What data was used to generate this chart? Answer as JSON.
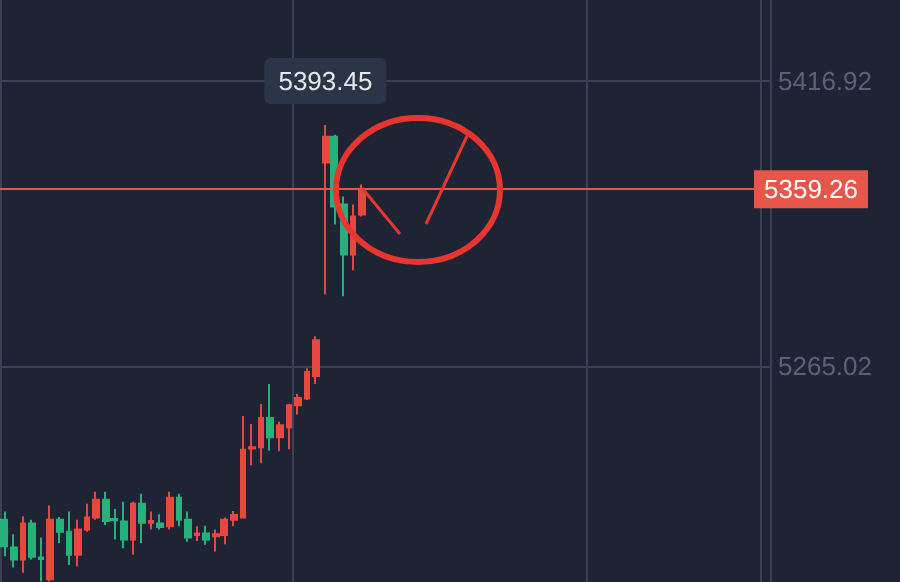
{
  "chart_data": {
    "type": "candlestick",
    "categories": [
      null,
      null,
      null,
      null,
      null,
      null,
      null,
      null,
      null,
      null,
      null,
      null,
      null,
      null,
      null,
      null,
      null,
      null,
      null,
      null,
      null,
      null,
      null,
      null,
      null,
      null,
      null,
      null,
      null,
      null,
      null,
      null,
      null,
      null,
      null,
      null,
      null,
      null,
      null,
      null,
      null,
      null,
      null,
      null,
      null,
      null,
      null,
      null,
      null,
      null,
      null,
      null,
      null,
      null,
      null,
      null,
      null,
      null,
      null,
      null,
      null,
      null,
      null,
      null,
      null,
      null,
      null,
      null,
      null,
      null,
      null,
      null,
      null,
      null,
      null,
      null,
      null,
      null,
      null,
      null,
      null,
      null,
      null,
      null
    ],
    "ohlc": [
      [
        5183.2,
        5187.5,
        5163.7,
        5169.0
      ],
      [
        5168.4,
        5175.4,
        5157.7,
        5162.0
      ],
      [
        5162.0,
        5185.0,
        5154.9,
        5181.1
      ],
      [
        5181.1,
        5183.2,
        5162.0,
        5163.4
      ],
      [
        5163.0,
        5173.7,
        5150.3,
        5162.3
      ],
      [
        5151.4,
        5190.7,
        5150.3,
        5183.2
      ],
      [
        5183.2,
        5184.6,
        5170.8,
        5176.8
      ],
      [
        5176.8,
        5187.5,
        5159.1,
        5164.5
      ],
      [
        5164.5,
        5183.2,
        5158.4,
        5177.9
      ],
      [
        5177.9,
        5191.7,
        5176.8,
        5184.3
      ],
      [
        5184.3,
        5198.1,
        5183.2,
        5193.8
      ],
      [
        5193.8,
        5198.1,
        5180.4,
        5182.5
      ],
      [
        5183.6,
        5188.9,
        5172.6,
        5182.9
      ],
      [
        5182.2,
        5192.8,
        5168.0,
        5172.6
      ],
      [
        5172.6,
        5192.8,
        5164.5,
        5191.7
      ],
      [
        5191.7,
        5197.0,
        5170.8,
        5181.5
      ],
      [
        5181.5,
        5187.5,
        5177.9,
        5182.5
      ],
      [
        5181.1,
        5186.1,
        5177.9,
        5179.3
      ],
      [
        5179.7,
        5198.1,
        5177.9,
        5194.9
      ],
      [
        5194.9,
        5197.0,
        5179.7,
        5183.2
      ],
      [
        5183.2,
        5187.5,
        5171.5,
        5173.7
      ],
      [
        5175.1,
        5179.7,
        5171.9,
        5175.8
      ],
      [
        5175.8,
        5180.0,
        5169.8,
        5172.6
      ],
      [
        5174.4,
        5177.9,
        5166.2,
        5175.4
      ],
      [
        5175.1,
        5184.3,
        5170.1,
        5183.2
      ],
      [
        5183.2,
        5187.8,
        5179.7,
        5185.7
      ],
      [
        5184.3,
        5238.4,
        5184.3,
        5220.4
      ],
      [
        5221.1,
        5234.2,
        5212.2,
        5221.8
      ],
      [
        5221.8,
        5244.8,
        5213.3,
        5237.4
      ],
      [
        5237.4,
        5255.4,
        5220.0,
        5227.1
      ],
      [
        5227.1,
        5235.3,
        5219.7,
        5233.5
      ],
      [
        5232.4,
        5244.8,
        5220.7,
        5244.1
      ],
      [
        5244.1,
        5250.1,
        5239.2,
        5248.0
      ],
      [
        5247.7,
        5263.9,
        5246.9,
        5261.8
      ],
      [
        5259.7,
        5280.9,
        5255.5,
        5278.8
      ],
      [
        5373.4,
        5393.45,
        5303.3,
        5387.2
      ],
      [
        5387.2,
        5388.2,
        5340.4,
        5350.0
      ],
      [
        5351.1,
        5355.3,
        5302.2,
        5324.5
      ],
      [
        5324.5,
        5351.1,
        5316.0,
        5344.7
      ],
      [
        5345.7,
        5361.7,
        5344.7,
        5359.26
      ],
      null,
      null,
      null,
      null,
      null,
      null,
      null,
      null,
      null,
      null,
      null,
      null,
      null,
      null,
      null,
      null,
      null,
      null,
      null,
      null,
      null,
      null,
      null,
      null,
      null,
      null,
      null,
      null,
      null,
      null,
      null,
      null,
      null,
      null,
      null,
      null,
      null,
      null,
      null,
      null,
      null,
      null,
      null,
      null
    ],
    "colors": [
      "#26b07a",
      "#26b07a",
      "#e8473f",
      "#26b07a",
      "#26b07a",
      "#e8473f",
      "#26b07a",
      "#26b07a",
      "#e8473f",
      "#e8473f",
      "#e8473f",
      "#26b07a",
      "#26b07a",
      "#26b07a",
      "#e8473f",
      "#26b07a",
      "#e8473f",
      "#26b07a",
      "#e8473f",
      "#26b07a",
      "#26b07a",
      "#e8473f",
      "#26b07a",
      "#e8473f",
      "#e8473f",
      "#e8473f",
      "#e8473f",
      "#e8473f",
      "#e8473f",
      "#26b07a",
      "#e8473f",
      "#e8473f",
      "#e8473f",
      "#e8473f",
      "#e8473f",
      "#e8473f",
      "#26b07a",
      "#26b07a",
      "#e8473f",
      "#e8473f",
      null,
      null,
      null,
      null,
      null,
      null,
      null,
      null,
      null,
      null,
      null,
      null,
      null,
      null,
      null,
      null,
      null,
      null,
      null,
      null,
      null,
      null,
      null,
      null,
      null,
      null,
      null,
      null,
      null,
      null,
      null,
      null,
      null,
      null,
      null,
      null,
      null,
      null,
      null,
      null,
      null,
      null,
      null,
      null
    ],
    "ylim": [
      5150,
      5460
    ],
    "yticks": [
      5416.92,
      5265.02
    ],
    "grid": true,
    "tick_labels": "y",
    "ref_lines": [
      {
        "axis": "y",
        "value": 5359.26,
        "label": "5359.26",
        "color": "#e8564a"
      }
    ],
    "annotations": [
      "5393.45"
    ]
  }
}
